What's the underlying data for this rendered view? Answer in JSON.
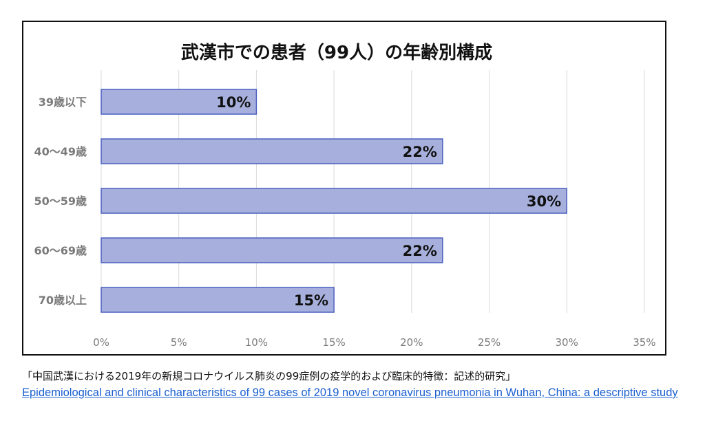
{
  "chart_data": {
    "type": "bar",
    "orientation": "horizontal",
    "title": "武漢市での患者（99人）の年齢別構成",
    "categories": [
      "39歳以下",
      "40〜49歳",
      "50〜59歳",
      "60〜69歳",
      "70歳以上"
    ],
    "values": [
      10,
      22,
      30,
      22,
      15
    ],
    "value_labels": [
      "10%",
      "22%",
      "30%",
      "22%",
      "15%"
    ],
    "x_ticks": [
      "0%",
      "5%",
      "10%",
      "15%",
      "20%",
      "25%",
      "30%",
      "35%"
    ],
    "xlim": [
      0,
      35
    ],
    "grid": true,
    "colors": {
      "bar_fill": "#a7b0dc",
      "bar_edge": "#4a5fc0",
      "grid": "#d9d9d9",
      "tick_text": "#7a7a7a"
    }
  },
  "caption": "「中国武漢における2019年の新規コロナウイルス肺炎の99症例の疫学的および臨床的特徴：記述的研究」",
  "source_link": "Epidemiological and clinical characteristics of 99 cases of 2019 novel coronavirus pneumonia in Wuhan, China: a descriptive study"
}
